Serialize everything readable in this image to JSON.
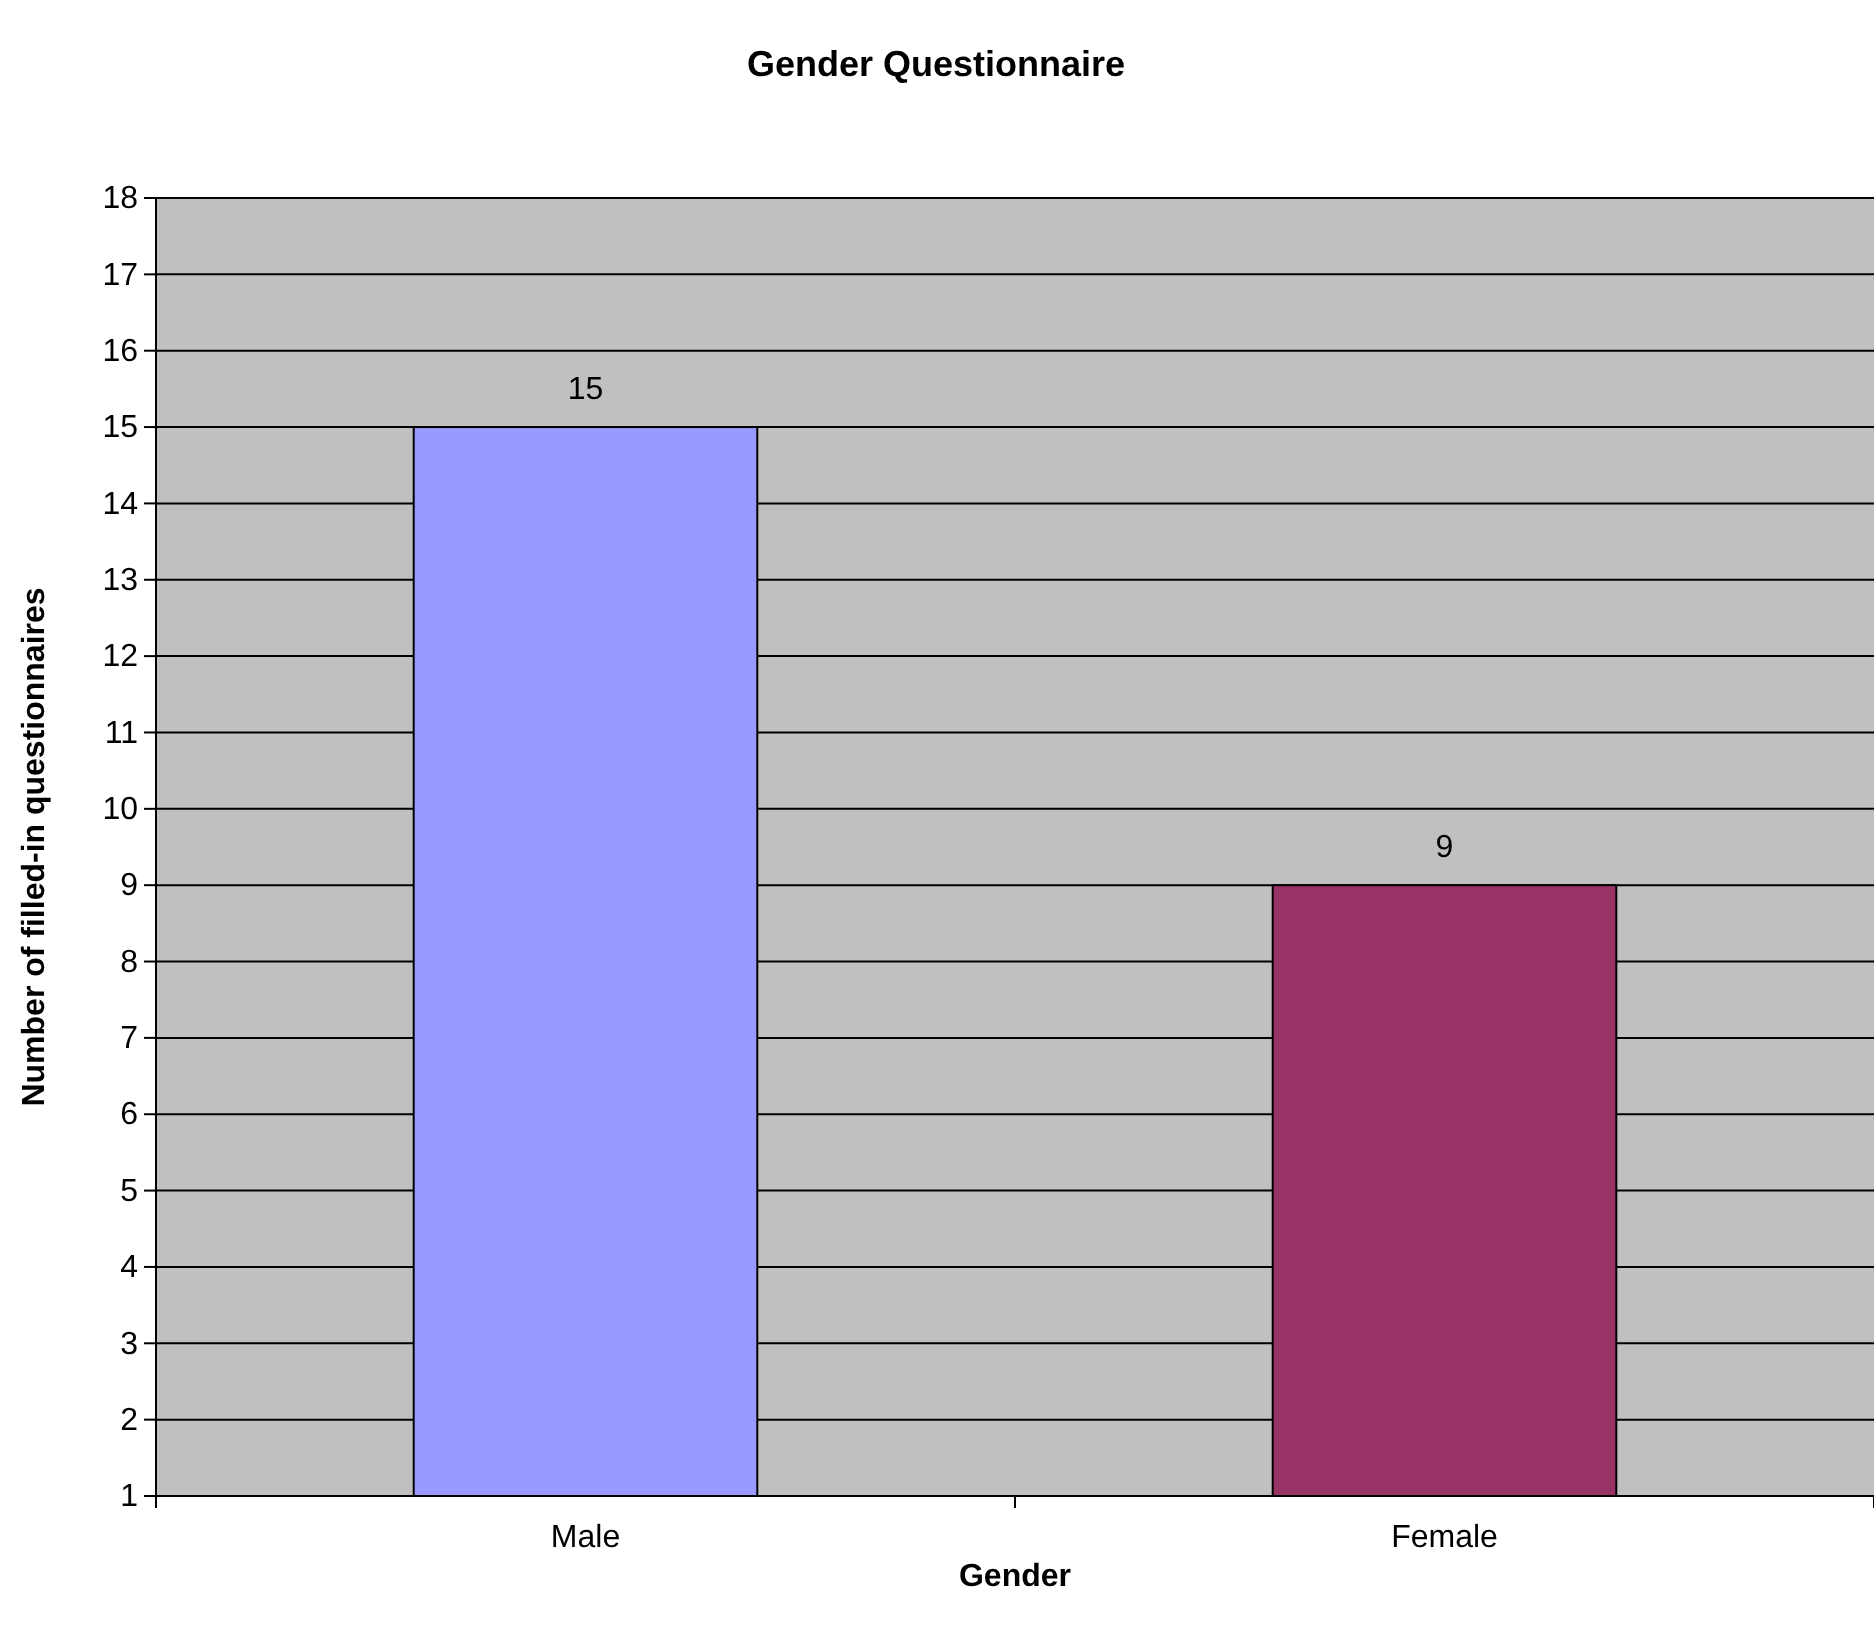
{
  "chart_data": {
    "type": "bar",
    "title": "Gender Questionnaire",
    "xlabel": "Gender",
    "ylabel": "Number of filled-in questionnaires",
    "categories": [
      "Male",
      "Female"
    ],
    "values": [
      15,
      9
    ],
    "colors": [
      "#9999ff",
      "#993366"
    ],
    "ylim": [
      1,
      18
    ],
    "yticks": [
      1,
      2,
      3,
      4,
      5,
      6,
      7,
      8,
      9,
      10,
      11,
      12,
      13,
      14,
      15,
      16,
      17,
      18
    ],
    "grid": "y",
    "data_labels": true
  }
}
